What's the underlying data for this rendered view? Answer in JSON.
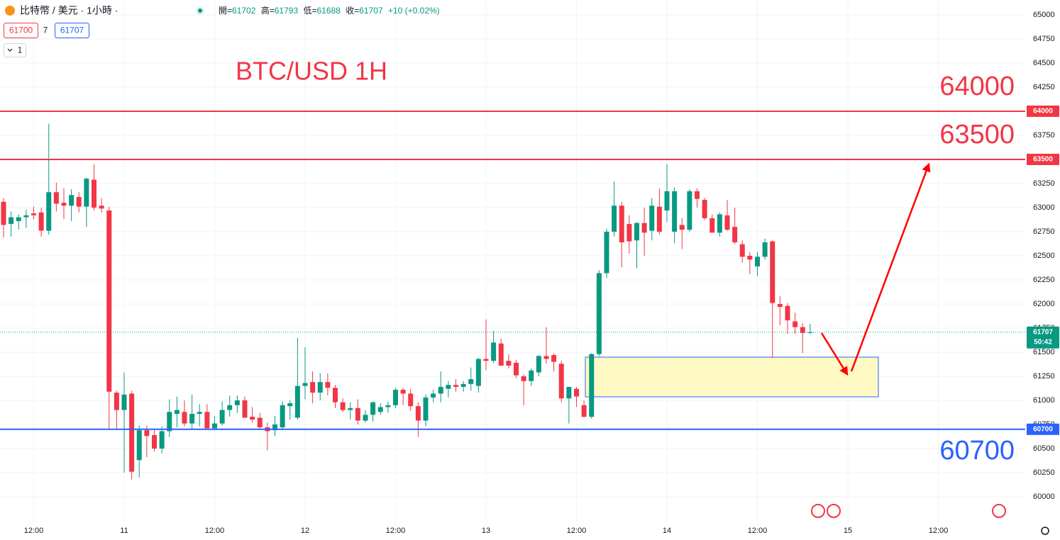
{
  "header": {
    "symbol": "比特幣 / 美元 · 1小時 ·",
    "ohlc_labels": [
      "開=",
      "高=",
      "低=",
      "收="
    ],
    "change": "+10 (+0.02%)"
  },
  "quote": {
    "bid": 61700,
    "spread": 7,
    "ask": 61707
  },
  "indicator_count": 1,
  "chart_data": {
    "type": "candlestick",
    "title": "BTC/USD 1H",
    "categories": [
      null,
      null,
      null,
      null,
      "12:00",
      null,
      null,
      null,
      null,
      null,
      null,
      null,
      null,
      null,
      null,
      null,
      "11",
      null,
      null,
      null,
      null,
      null,
      null,
      null,
      null,
      null,
      null,
      null,
      "12:00",
      null,
      null,
      null,
      null,
      null,
      null,
      null,
      null,
      null,
      null,
      null,
      "12",
      null,
      null,
      null,
      null,
      null,
      null,
      null,
      null,
      null,
      null,
      null,
      "12:00",
      null,
      null,
      null,
      null,
      null,
      null,
      null,
      null,
      null,
      null,
      null,
      "13",
      null,
      null,
      null,
      null,
      null,
      null,
      null,
      null,
      null,
      null,
      null,
      "12:00",
      null,
      null,
      null,
      null,
      null,
      null,
      null,
      null,
      null,
      null,
      null,
      "14",
      null,
      null,
      null,
      null,
      null,
      null,
      null,
      null,
      null,
      null,
      null,
      "12:00",
      null,
      null,
      null,
      null,
      null,
      null,
      null,
      null,
      null,
      null,
      null,
      "15",
      null,
      null,
      null,
      null,
      null,
      null,
      null,
      null,
      null,
      null,
      null,
      "12:00"
    ],
    "open": [
      63060,
      62830,
      62860,
      62900,
      62940,
      62950,
      62760,
      63160,
      63050,
      63020,
      63110,
      63010,
      63290,
      63020,
      62970,
      61080,
      60900,
      61070,
      60380,
      60690,
      60640,
      60500,
      60680,
      60860,
      60880,
      60760,
      60860,
      60880,
      60710,
      60760,
      60900,
      60950,
      61000,
      60830,
      60820,
      60720,
      60690,
      60720,
      60940,
      60820,
      61150,
      61190,
      61080,
      61190,
      61130,
      60980,
      60900,
      60920,
      60790,
      60850,
      60880,
      60930,
      60950,
      61110,
      61070,
      60940,
      60790,
      61030,
      61070,
      61120,
      61160,
      61140,
      61170,
      61150,
      61430,
      61410,
      61590,
      61410,
      61390,
      61250,
      61200,
      61290,
      61460,
      61470,
      61380,
      61020,
      61120,
      60950,
      60830,
      61480,
      62320,
      62750,
      63020,
      62830,
      62660,
      62840,
      62760,
      63010,
      62970,
      62750,
      62820,
      62770,
      63170,
      63080,
      62890,
      62740,
      62920,
      62800,
      62620,
      62500,
      62390,
      62490,
      62650,
      62000,
      61980,
      61820,
      61760,
      61702,
      null,
      null,
      null,
      null,
      null,
      null,
      null,
      null,
      null,
      null,
      null,
      null,
      null,
      null,
      null,
      null,
      null
    ],
    "high": [
      63100,
      62960,
      62930,
      62980,
      63010,
      63000,
      63870,
      63260,
      63200,
      63190,
      63160,
      63310,
      63450,
      63100,
      63010,
      61100,
      61290,
      61100,
      60740,
      60740,
      60690,
      60730,
      61010,
      61040,
      61000,
      61060,
      60960,
      60960,
      60840,
      60990,
      61050,
      61050,
      61040,
      60930,
      60870,
      60770,
      60840,
      60990,
      61000,
      61650,
      61550,
      61300,
      61280,
      61280,
      61160,
      61020,
      60980,
      61010,
      60900,
      60990,
      60970,
      60990,
      61130,
      61130,
      61120,
      60980,
      61060,
      61110,
      61300,
      61200,
      61220,
      61200,
      61340,
      61440,
      61840,
      61720,
      61640,
      61480,
      61420,
      61270,
      61330,
      61470,
      61760,
      61490,
      61410,
      61140,
      61140,
      61000,
      61490,
      62350,
      62780,
      63270,
      63060,
      62920,
      62850,
      63000,
      63100,
      63200,
      63450,
      63210,
      62890,
      63190,
      63200,
      63100,
      62930,
      62950,
      63080,
      63000,
      62660,
      62540,
      62540,
      62680,
      62660,
      62080,
      62010,
      61910,
      61800,
      61793,
      null,
      null,
      null,
      null,
      null,
      null,
      null,
      null,
      null,
      null,
      null,
      null,
      null,
      null,
      null,
      null,
      null
    ],
    "low": [
      62690,
      62700,
      62770,
      62790,
      62880,
      62700,
      62720,
      62960,
      62880,
      62860,
      62950,
      62800,
      62970,
      62950,
      60700,
      60700,
      60250,
      60180,
      60200,
      60410,
      60470,
      60450,
      60620,
      60720,
      60730,
      60700,
      60730,
      60700,
      60690,
      60740,
      60830,
      60870,
      60830,
      60770,
      60700,
      60480,
      60630,
      60690,
      60800,
      60800,
      61010,
      60970,
      61000,
      61050,
      60920,
      60880,
      60800,
      60750,
      60770,
      60780,
      60850,
      60870,
      60920,
      60950,
      60890,
      60620,
      60730,
      60980,
      60980,
      61030,
      61090,
      61090,
      61100,
      61080,
      61310,
      61390,
      61360,
      61330,
      61230,
      60950,
      61150,
      61250,
      61380,
      61300,
      60980,
      60760,
      60930,
      60820,
      60810,
      61460,
      62270,
      62700,
      62380,
      62520,
      62370,
      62500,
      62660,
      62720,
      62850,
      62630,
      62570,
      62750,
      63000,
      62870,
      62740,
      62700,
      62760,
      62620,
      62430,
      62310,
      62290,
      62460,
      61440,
      61780,
      61690,
      61690,
      61490,
      61688,
      null,
      null,
      null,
      null,
      null,
      null,
      null,
      null,
      null,
      null,
      null,
      null,
      null,
      null,
      null,
      null,
      null
    ],
    "close": [
      62820,
      62900,
      62900,
      62920,
      62920,
      62760,
      63160,
      63040,
      63020,
      63130,
      63010,
      63300,
      63000,
      62990,
      61090,
      60900,
      61060,
      60260,
      60690,
      60630,
      60500,
      60680,
      60880,
      60900,
      60760,
      60860,
      60880,
      60710,
      60760,
      60900,
      60950,
      61000,
      60820,
      60800,
      60720,
      60680,
      60750,
      60950,
      60970,
      61150,
      61180,
      61080,
      61190,
      61130,
      60980,
      60900,
      60920,
      60790,
      60850,
      60980,
      60930,
      60950,
      61110,
      61070,
      60940,
      60790,
      61030,
      61070,
      61140,
      61160,
      61140,
      61170,
      61220,
      61430,
      61410,
      61600,
      61360,
      61360,
      61260,
      61200,
      61310,
      61460,
      61430,
      61400,
      61020,
      61140,
      61040,
      60830,
      61480,
      62320,
      62750,
      63020,
      62640,
      62650,
      62840,
      62740,
      63020,
      62750,
      63170,
      63170,
      62770,
      63170,
      63090,
      62890,
      62740,
      62930,
      62770,
      62640,
      62490,
      62460,
      62490,
      62640,
      62010,
      61970,
      61830,
      61760,
      61700,
      61707,
      null,
      null,
      null,
      null,
      null,
      null,
      null,
      null,
      null,
      null,
      null,
      null,
      null,
      null,
      null,
      null,
      null
    ],
    "up_color": "#089981",
    "down_color": "#f23645",
    "ylim": [
      59713,
      65154
    ],
    "yticks": [
      60000,
      60250,
      60500,
      60750,
      61000,
      61250,
      61500,
      61750,
      62000,
      62250,
      62500,
      62750,
      63000,
      63250,
      63500,
      63750,
      64000,
      64250,
      64500,
      64750,
      65000
    ],
    "grid": true,
    "levels": [
      {
        "value": 64000,
        "color": "#f23645"
      },
      {
        "value": 63500,
        "color": "#f23645"
      },
      {
        "value": 60700,
        "color": "#2962ff"
      }
    ],
    "countdown": "50:42"
  }
}
